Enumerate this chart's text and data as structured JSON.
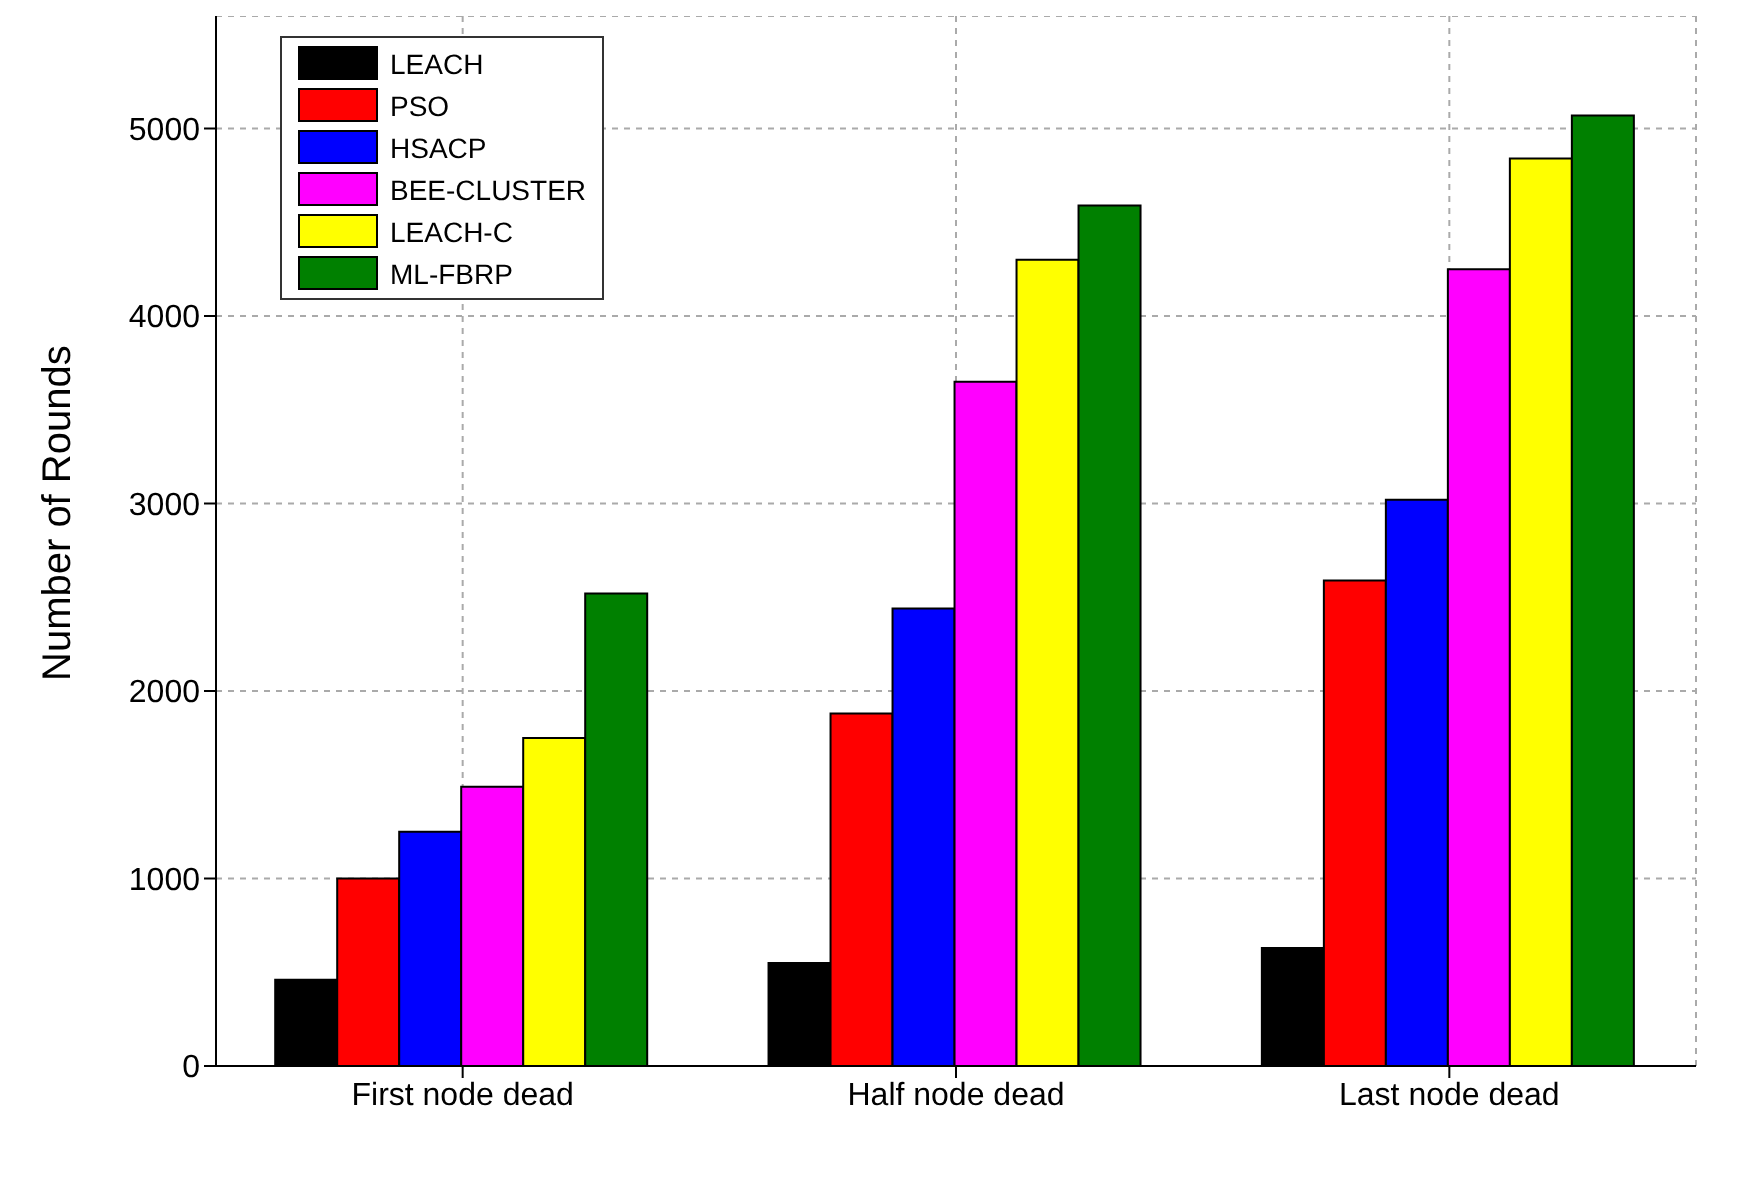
{
  "chart_data": {
    "type": "bar",
    "ylabel": "Number of Rounds",
    "categories": [
      "First node dead",
      "Half node dead",
      "Last node dead"
    ],
    "series": [
      {
        "name": "LEACH",
        "color": "#000000",
        "values": [
          460,
          550,
          630
        ]
      },
      {
        "name": "PSO",
        "color": "#ff0000",
        "values": [
          1000,
          1880,
          2590
        ]
      },
      {
        "name": "HSACP",
        "color": "#0000ff",
        "values": [
          1250,
          2440,
          3020
        ]
      },
      {
        "name": "BEE-CLUSTER",
        "color": "#ff00ff",
        "values": [
          1490,
          3650,
          4250
        ]
      },
      {
        "name": "LEACH-C",
        "color": "#ffff00",
        "values": [
          1750,
          4300,
          4840
        ]
      },
      {
        "name": "ML-FBRP",
        "color": "#008000",
        "values": [
          2520,
          4590,
          5070
        ]
      }
    ],
    "ylim": [
      0,
      5600
    ],
    "yticks": [
      0,
      1000,
      2000,
      3000,
      4000,
      5000
    ],
    "grid": true,
    "legend": "top left"
  }
}
